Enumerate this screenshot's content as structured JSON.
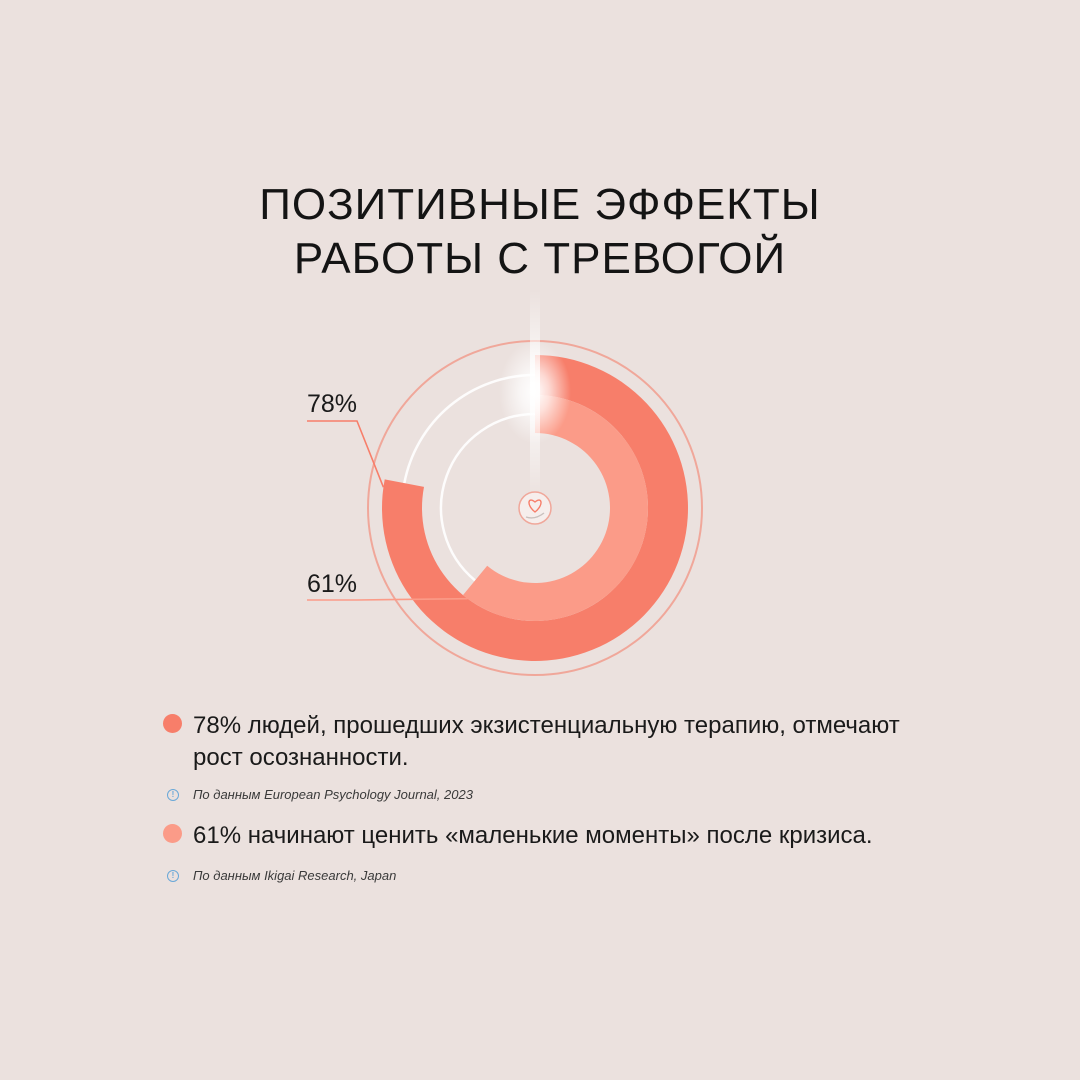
{
  "title": {
    "line1": "ПОЗИТИВНЫЕ ЭФФЕКТЫ",
    "line2": "РАБОТЫ С ТРЕВОГОЙ"
  },
  "chart_data": {
    "type": "pie",
    "variant": "radial-donut",
    "series": [
      {
        "label": "78%",
        "value": 78,
        "color": "#f77e6a"
      },
      {
        "label": "61%",
        "value": 61,
        "color": "#fb9b88"
      }
    ],
    "max": 100,
    "center_icon": "heart-in-hand-icon"
  },
  "legend": [
    {
      "text": "78% людей, прошедших экзистенциальную терапию, отмечают рост осознанности.",
      "color": "#f77e6a",
      "source": "По данным European Psychology Journal, 2023"
    },
    {
      "text": "61% начинают ценить «маленькие моменты» после кризиса.",
      "color": "#fb9b88",
      "source": "По данным Ikigai Research, Japan"
    }
  ],
  "colors": {
    "background": "#ebe1de",
    "outline": "#f0a79a",
    "track": "#ffffff"
  }
}
